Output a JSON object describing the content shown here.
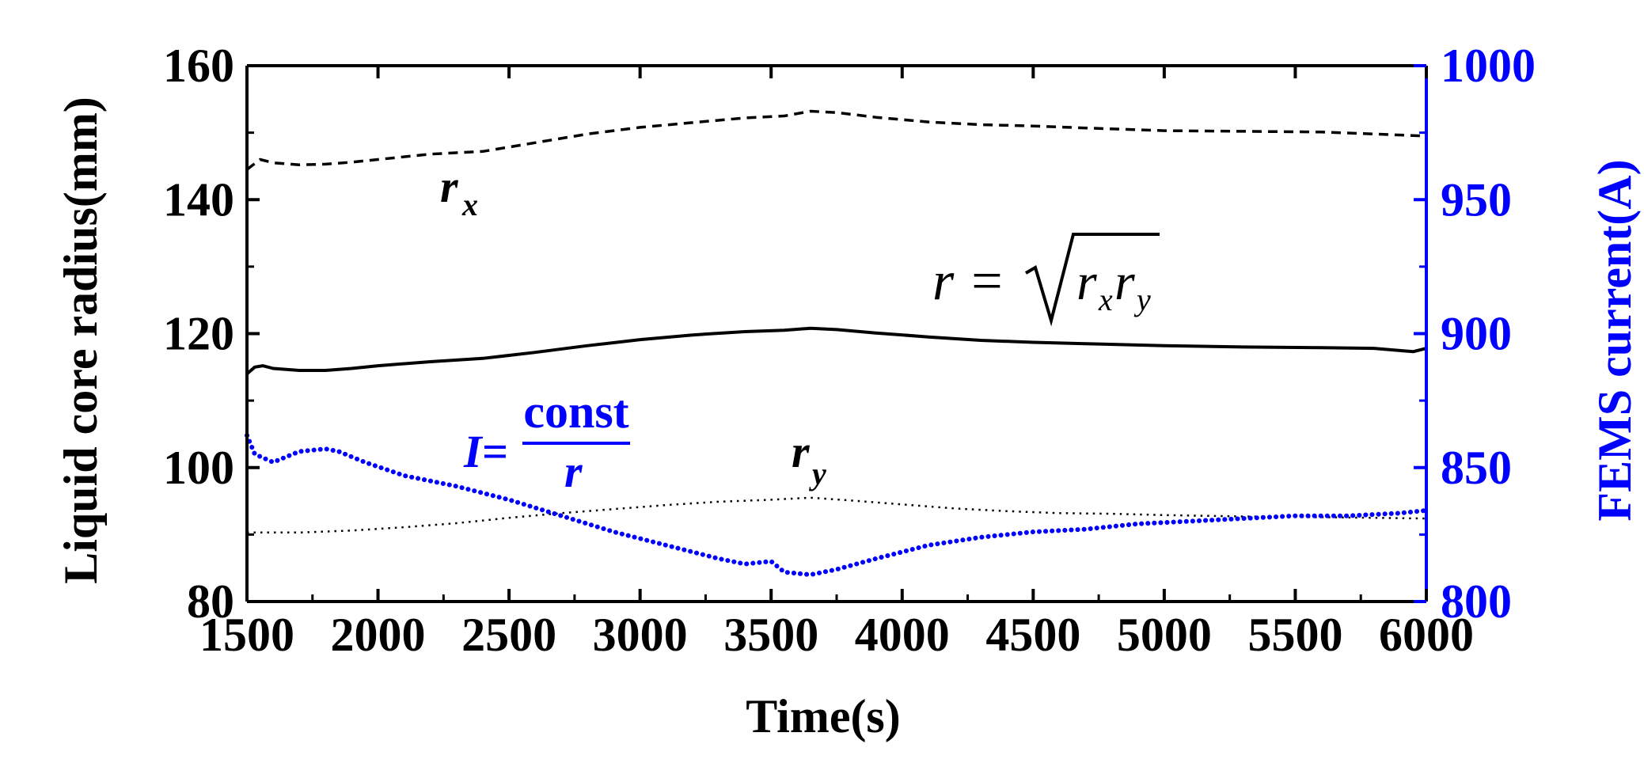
{
  "chart_data": {
    "type": "line",
    "title": "",
    "xlabel": "Time(s)",
    "ylabel": "Liquid core radius(mm)",
    "y2label": "FEMS current(A)",
    "xlim": [
      1500,
      6000
    ],
    "ylim": [
      80,
      160
    ],
    "y2lim": [
      800,
      1000
    ],
    "xticks": [
      "1500",
      "2000",
      "2500",
      "3000",
      "3500",
      "4000",
      "4500",
      "5000",
      "5500",
      "6000"
    ],
    "yticks": [
      "80",
      "100",
      "120",
      "140",
      "160"
    ],
    "y2ticks": [
      "800",
      "850",
      "900",
      "950",
      "1000"
    ],
    "grid": false,
    "legend": "none",
    "colors": {
      "radius": "#000000",
      "current": "#0000ff"
    },
    "annotations": {
      "rx": {
        "base": "r",
        "sub": "x"
      },
      "ry": {
        "base": "r",
        "sub": "y"
      },
      "r_formula": {
        "lhs": "r =",
        "rad_a": "r",
        "sub_a": "x",
        "rad_b": "r",
        "sub_b": "y"
      },
      "i_formula": {
        "lhs": "I=",
        "numerator": "const",
        "denominator": "r"
      }
    },
    "series": [
      {
        "axis": "left",
        "style": "dashed",
        "color": "#000000",
        "x": [
          1500,
          1550,
          1600,
          1700,
          1800,
          1900,
          2000,
          2200,
          2400,
          2600,
          2800,
          3000,
          3200,
          3400,
          3550,
          3650,
          3750,
          3900,
          4100,
          4300,
          4500,
          4700,
          5000,
          5300,
          5600,
          5800,
          6000
        ],
        "values": [
          144.5,
          146,
          145.5,
          145.2,
          145.3,
          145.6,
          146,
          146.8,
          147.2,
          148.5,
          149.8,
          150.8,
          151.5,
          152.2,
          152.5,
          153.2,
          153,
          152.3,
          151.6,
          151.2,
          151,
          150.7,
          150.3,
          150.2,
          150.1,
          149.8,
          149.5
        ]
      },
      {
        "axis": "left",
        "style": "solid",
        "color": "#000000",
        "x": [
          1500,
          1530,
          1560,
          1600,
          1700,
          1800,
          1900,
          2000,
          2200,
          2400,
          2600,
          2800,
          3000,
          3200,
          3400,
          3550,
          3650,
          3750,
          3900,
          4100,
          4300,
          4500,
          4700,
          5000,
          5300,
          5600,
          5800,
          5950,
          6000
        ],
        "values": [
          114,
          115,
          115.2,
          114.8,
          114.5,
          114.5,
          114.8,
          115.2,
          115.8,
          116.3,
          117.2,
          118.2,
          119.1,
          119.8,
          120.3,
          120.5,
          120.8,
          120.6,
          120.1,
          119.5,
          119,
          118.7,
          118.5,
          118.2,
          118.0,
          117.9,
          117.8,
          117.3,
          117.8
        ]
      },
      {
        "axis": "left",
        "style": "dotted",
        "color": "#000000",
        "x": [
          1500,
          1700,
          1900,
          2100,
          2300,
          2500,
          2700,
          2900,
          3100,
          3300,
          3500,
          3650,
          3800,
          4000,
          4200,
          4400,
          4600,
          4800,
          5000,
          5300,
          5600,
          6000
        ],
        "values": [
          90.3,
          90.3,
          90.6,
          91.1,
          91.7,
          92.5,
          93.2,
          93.8,
          94.4,
          94.9,
          95.2,
          95.5,
          95.1,
          94.5,
          93.9,
          93.5,
          93.2,
          93.1,
          92.9,
          92.7,
          92.6,
          92.4
        ]
      },
      {
        "axis": "right",
        "style": "dense-dotted",
        "color": "#0000ff",
        "x": [
          1500,
          1530,
          1600,
          1700,
          1800,
          1850,
          1950,
          2100,
          2300,
          2500,
          2700,
          2900,
          3100,
          3300,
          3400,
          3500,
          3550,
          3650,
          3750,
          3900,
          4100,
          4300,
          4500,
          4700,
          4900,
          5100,
          5300,
          5500,
          5700,
          5900,
          6000
        ],
        "values": [
          862,
          855,
          852,
          856,
          857,
          856,
          852,
          847,
          843,
          838,
          832,
          826,
          821,
          816,
          814,
          815,
          811,
          810,
          812,
          816,
          821,
          824,
          826,
          827,
          829,
          830,
          831,
          832,
          832,
          833,
          834
        ]
      }
    ]
  }
}
